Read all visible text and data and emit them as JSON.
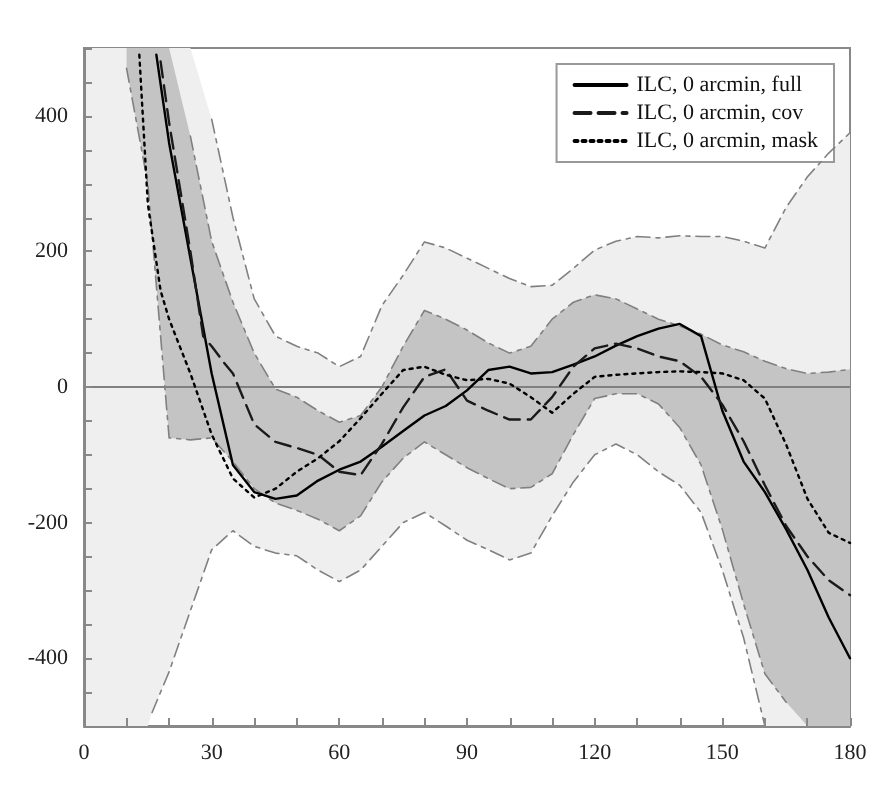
{
  "chart_data": {
    "type": "line",
    "xlim": [
      0,
      180
    ],
    "ylim": [
      -500,
      500
    ],
    "xticks": [
      0,
      {
        "value": 10,
        "label": null
      },
      {
        "value": 20,
        "label": null
      },
      30,
      {
        "value": 40,
        "label": null
      },
      {
        "value": 50,
        "label": null
      },
      60,
      {
        "value": 70,
        "label": null
      },
      {
        "value": 80,
        "label": null
      },
      90,
      {
        "value": 100,
        "label": null
      },
      {
        "value": 110,
        "label": null
      },
      120,
      {
        "value": 130,
        "label": null
      },
      {
        "value": 140,
        "label": null
      },
      150,
      {
        "value": 160,
        "label": null
      },
      {
        "value": 170,
        "label": null
      },
      180
    ],
    "yticks": [
      {
        "value": -500,
        "label": null
      },
      {
        "value": -450,
        "label": null
      },
      -400,
      {
        "value": -350,
        "label": null
      },
      {
        "value": -300,
        "label": null
      },
      {
        "value": -250,
        "label": null
      },
      -200,
      {
        "value": -150,
        "label": null
      },
      {
        "value": -100,
        "label": null
      },
      {
        "value": -50,
        "label": null
      },
      0,
      {
        "value": 50,
        "label": null
      },
      {
        "value": 100,
        "label": null
      },
      {
        "value": 150,
        "label": null
      },
      200,
      {
        "value": 250,
        "label": null
      },
      {
        "value": 300,
        "label": null
      },
      {
        "value": 350,
        "label": null
      },
      400,
      {
        "value": 450,
        "label": null
      },
      {
        "value": 500,
        "label": null
      }
    ],
    "legend": "top right",
    "marker": "none",
    "ref_lines": [
      {
        "axis": "y",
        "value": 0,
        "color": "#808080"
      }
    ],
    "series": [
      {
        "type": "area",
        "color": "#efefef",
        "x": [
          0,
          5,
          10,
          15,
          16,
          20,
          25,
          30,
          35,
          40,
          45,
          50,
          55,
          60,
          65,
          70,
          75,
          80,
          85,
          90,
          95,
          100,
          105,
          110,
          115,
          120,
          125,
          130,
          135,
          140,
          145,
          150,
          155,
          160,
          165,
          170,
          175,
          180
        ],
        "values": [
          null,
          null,
          null,
          null,
          null,
          null,
          null,
          null,
          null,
          null,
          null,
          null,
          null,
          null,
          null,
          null,
          null,
          null,
          null,
          null,
          null,
          null,
          null,
          null,
          null,
          null,
          null,
          null,
          null,
          null,
          null,
          null,
          null,
          null,
          null,
          null,
          null,
          null
        ],
        "upper": [
          500,
          500,
          500,
          500,
          500,
          500,
          500,
          395,
          250,
          130,
          75,
          60,
          50,
          30,
          45,
          120,
          165,
          214,
          205,
          190,
          175,
          160,
          148,
          150,
          175,
          202,
          215,
          222,
          220,
          223,
          222,
          222,
          215,
          205,
          265,
          310,
          345,
          375
        ],
        "lower": [
          -500,
          -500,
          -500,
          -500,
          -480,
          -420,
          -330,
          -240,
          -212,
          -235,
          -245,
          -249,
          -270,
          -287,
          -270,
          -235,
          -200,
          -185,
          -205,
          -226,
          -240,
          -255,
          -245,
          -190,
          -140,
          -100,
          -84,
          -100,
          -125,
          -145,
          -185,
          -270,
          -370,
          -500,
          -500,
          -500,
          -500,
          -500
        ]
      },
      {
        "type": "line",
        "color": "#808080",
        "line_style": "dashed",
        "x": [
          30,
          35,
          40,
          45,
          50,
          55,
          60,
          65,
          70,
          75,
          80,
          85,
          90,
          95,
          100,
          105,
          110,
          115,
          120,
          125,
          130,
          135,
          140,
          145,
          150,
          155,
          160,
          165,
          170,
          175,
          180
        ],
        "values": [
          395,
          250,
          130,
          75,
          60,
          50,
          30,
          45,
          120,
          165,
          214,
          205,
          190,
          175,
          160,
          148,
          150,
          175,
          202,
          215,
          222,
          220,
          223,
          222,
          222,
          215,
          205,
          265,
          310,
          345,
          375
        ]
      },
      {
        "type": "line",
        "color": "#808080",
        "line_style": "dashed",
        "x": [
          16,
          20,
          25,
          30,
          35,
          40,
          45,
          50,
          55,
          60,
          65,
          70,
          75,
          80,
          85,
          90,
          95,
          100,
          105,
          110,
          115,
          120,
          125,
          130,
          135,
          140,
          145,
          150,
          155,
          160
        ],
        "values": [
          -480,
          -420,
          -330,
          -240,
          -212,
          -235,
          -245,
          -249,
          -270,
          -287,
          -270,
          -235,
          -200,
          -185,
          -205,
          -226,
          -240,
          -255,
          -245,
          -190,
          -140,
          -100,
          -84,
          -100,
          -125,
          -145,
          -185,
          -270,
          -370,
          -500
        ]
      },
      {
        "type": "area",
        "color": "#c4c4c4",
        "x": [
          10,
          15,
          20,
          25,
          30,
          35,
          40,
          45,
          50,
          55,
          60,
          65,
          70,
          75,
          80,
          85,
          90,
          95,
          100,
          105,
          110,
          115,
          120,
          125,
          130,
          135,
          140,
          145,
          150,
          155,
          160,
          165,
          170,
          175,
          180
        ],
        "values": [
          null,
          null,
          null,
          null,
          null,
          null,
          null,
          null,
          null,
          null,
          null,
          null,
          null,
          null,
          null,
          null,
          null,
          null,
          null,
          null,
          null,
          null,
          null,
          null,
          null,
          null,
          null,
          null,
          null,
          null,
          null,
          null,
          null,
          null,
          null
        ],
        "upper": [
          500,
          500,
          500,
          370,
          215,
          125,
          50,
          -3,
          -15,
          -35,
          -52,
          -42,
          0,
          60,
          113,
          100,
          84,
          65,
          50,
          60,
          100,
          125,
          136,
          130,
          115,
          100,
          90,
          78,
          62,
          52,
          38,
          27,
          20,
          22,
          26
        ],
        "lower": [
          470,
          300,
          -75,
          -78,
          -75,
          -110,
          -150,
          -171,
          -182,
          -195,
          -212,
          -190,
          -140,
          -105,
          -81,
          -100,
          -119,
          -135,
          -150,
          -148,
          -128,
          -70,
          -17,
          -10,
          -10,
          -25,
          -60,
          -115,
          -210,
          -320,
          -423,
          -465,
          -500,
          -500,
          -500
        ]
      },
      {
        "type": "line",
        "color": "#808080",
        "line_style": "dashed",
        "x": [
          25,
          30,
          35,
          40,
          45,
          50,
          55,
          60,
          65,
          70,
          75,
          80,
          85,
          90,
          95,
          100,
          105,
          110,
          115,
          120,
          125,
          130,
          135,
          140,
          145,
          150,
          155,
          160,
          165,
          170,
          175,
          180
        ],
        "values": [
          370,
          215,
          125,
          50,
          -3,
          -15,
          -35,
          -52,
          -42,
          0,
          60,
          113,
          100,
          84,
          65,
          50,
          60,
          100,
          125,
          136,
          130,
          115,
          100,
          90,
          78,
          62,
          52,
          38,
          27,
          20,
          22,
          26
        ]
      },
      {
        "type": "line",
        "color": "#808080",
        "line_style": "dashed",
        "x": [
          10,
          15,
          20,
          25,
          30,
          35,
          40,
          45,
          50,
          55,
          60,
          65,
          70,
          75,
          80,
          85,
          90,
          95,
          100,
          105,
          110,
          115,
          120,
          125,
          130,
          135,
          140,
          145,
          150,
          155,
          160,
          165
        ],
        "values": [
          470,
          300,
          -75,
          -78,
          -75,
          -110,
          -150,
          -171,
          -182,
          -195,
          -212,
          -190,
          -140,
          -105,
          -81,
          -100,
          -119,
          -135,
          -150,
          -148,
          -128,
          -70,
          -17,
          -10,
          -10,
          -25,
          -60,
          -115,
          -210,
          -320,
          -423,
          -465
        ]
      },
      {
        "name": "ILC, 0 arcmin, full",
        "type": "line",
        "color": "#000000",
        "line_style": "solid",
        "x": [
          17,
          20,
          25,
          30,
          35,
          40,
          45,
          50,
          55,
          60,
          65,
          70,
          75,
          80,
          85,
          90,
          95,
          100,
          105,
          110,
          115,
          120,
          125,
          130,
          135,
          140,
          145,
          150,
          155,
          160,
          165,
          170,
          175,
          180
        ],
        "values": [
          490,
          360,
          190,
          20,
          -115,
          -155,
          -165,
          -160,
          -138,
          -122,
          -110,
          -88,
          -65,
          -42,
          -28,
          -5,
          25,
          30,
          20,
          22,
          33,
          45,
          61,
          75,
          86,
          93,
          75,
          -35,
          -110,
          -155,
          -210,
          -270,
          -340,
          -400
        ]
      },
      {
        "name": "ILC, 0 arcmin, cov",
        "type": "line",
        "color": "#1a1a1a",
        "line_style": "dashed",
        "x": [
          18,
          20,
          25,
          28,
          30,
          33,
          35,
          40,
          45,
          50,
          55,
          60,
          65,
          70,
          75,
          80,
          85,
          90,
          95,
          100,
          105,
          110,
          115,
          120,
          125,
          130,
          135,
          140,
          145,
          150,
          155,
          160,
          165,
          170,
          175,
          180
        ],
        "values": [
          480,
          390,
          200,
          75,
          60,
          35,
          20,
          -55,
          -81,
          -90,
          -100,
          -125,
          -130,
          -84,
          -30,
          15,
          26,
          -20,
          -35,
          -48,
          -48,
          -15,
          30,
          57,
          64,
          57,
          45,
          38,
          15,
          -26,
          -80,
          -145,
          -205,
          -250,
          -285,
          -307
        ]
      },
      {
        "name": "ILC, 0 arcmin, mask",
        "type": "line",
        "color": "#000000",
        "line_style": "dotted",
        "x": [
          13,
          15,
          18,
          20,
          25,
          30,
          35,
          40,
          45,
          50,
          55,
          60,
          65,
          70,
          75,
          80,
          85,
          90,
          95,
          100,
          105,
          110,
          115,
          120,
          125,
          130,
          135,
          140,
          145,
          150,
          155,
          160,
          165,
          170,
          175,
          180
        ],
        "values": [
          490,
          270,
          142,
          100,
          20,
          -70,
          -135,
          -163,
          -150,
          -125,
          -105,
          -80,
          -46,
          -10,
          25,
          30,
          18,
          10,
          12,
          5,
          -15,
          -38,
          -10,
          15,
          18,
          20,
          22,
          23,
          22,
          20,
          10,
          -17,
          -85,
          -165,
          -215,
          -230
        ]
      }
    ]
  }
}
